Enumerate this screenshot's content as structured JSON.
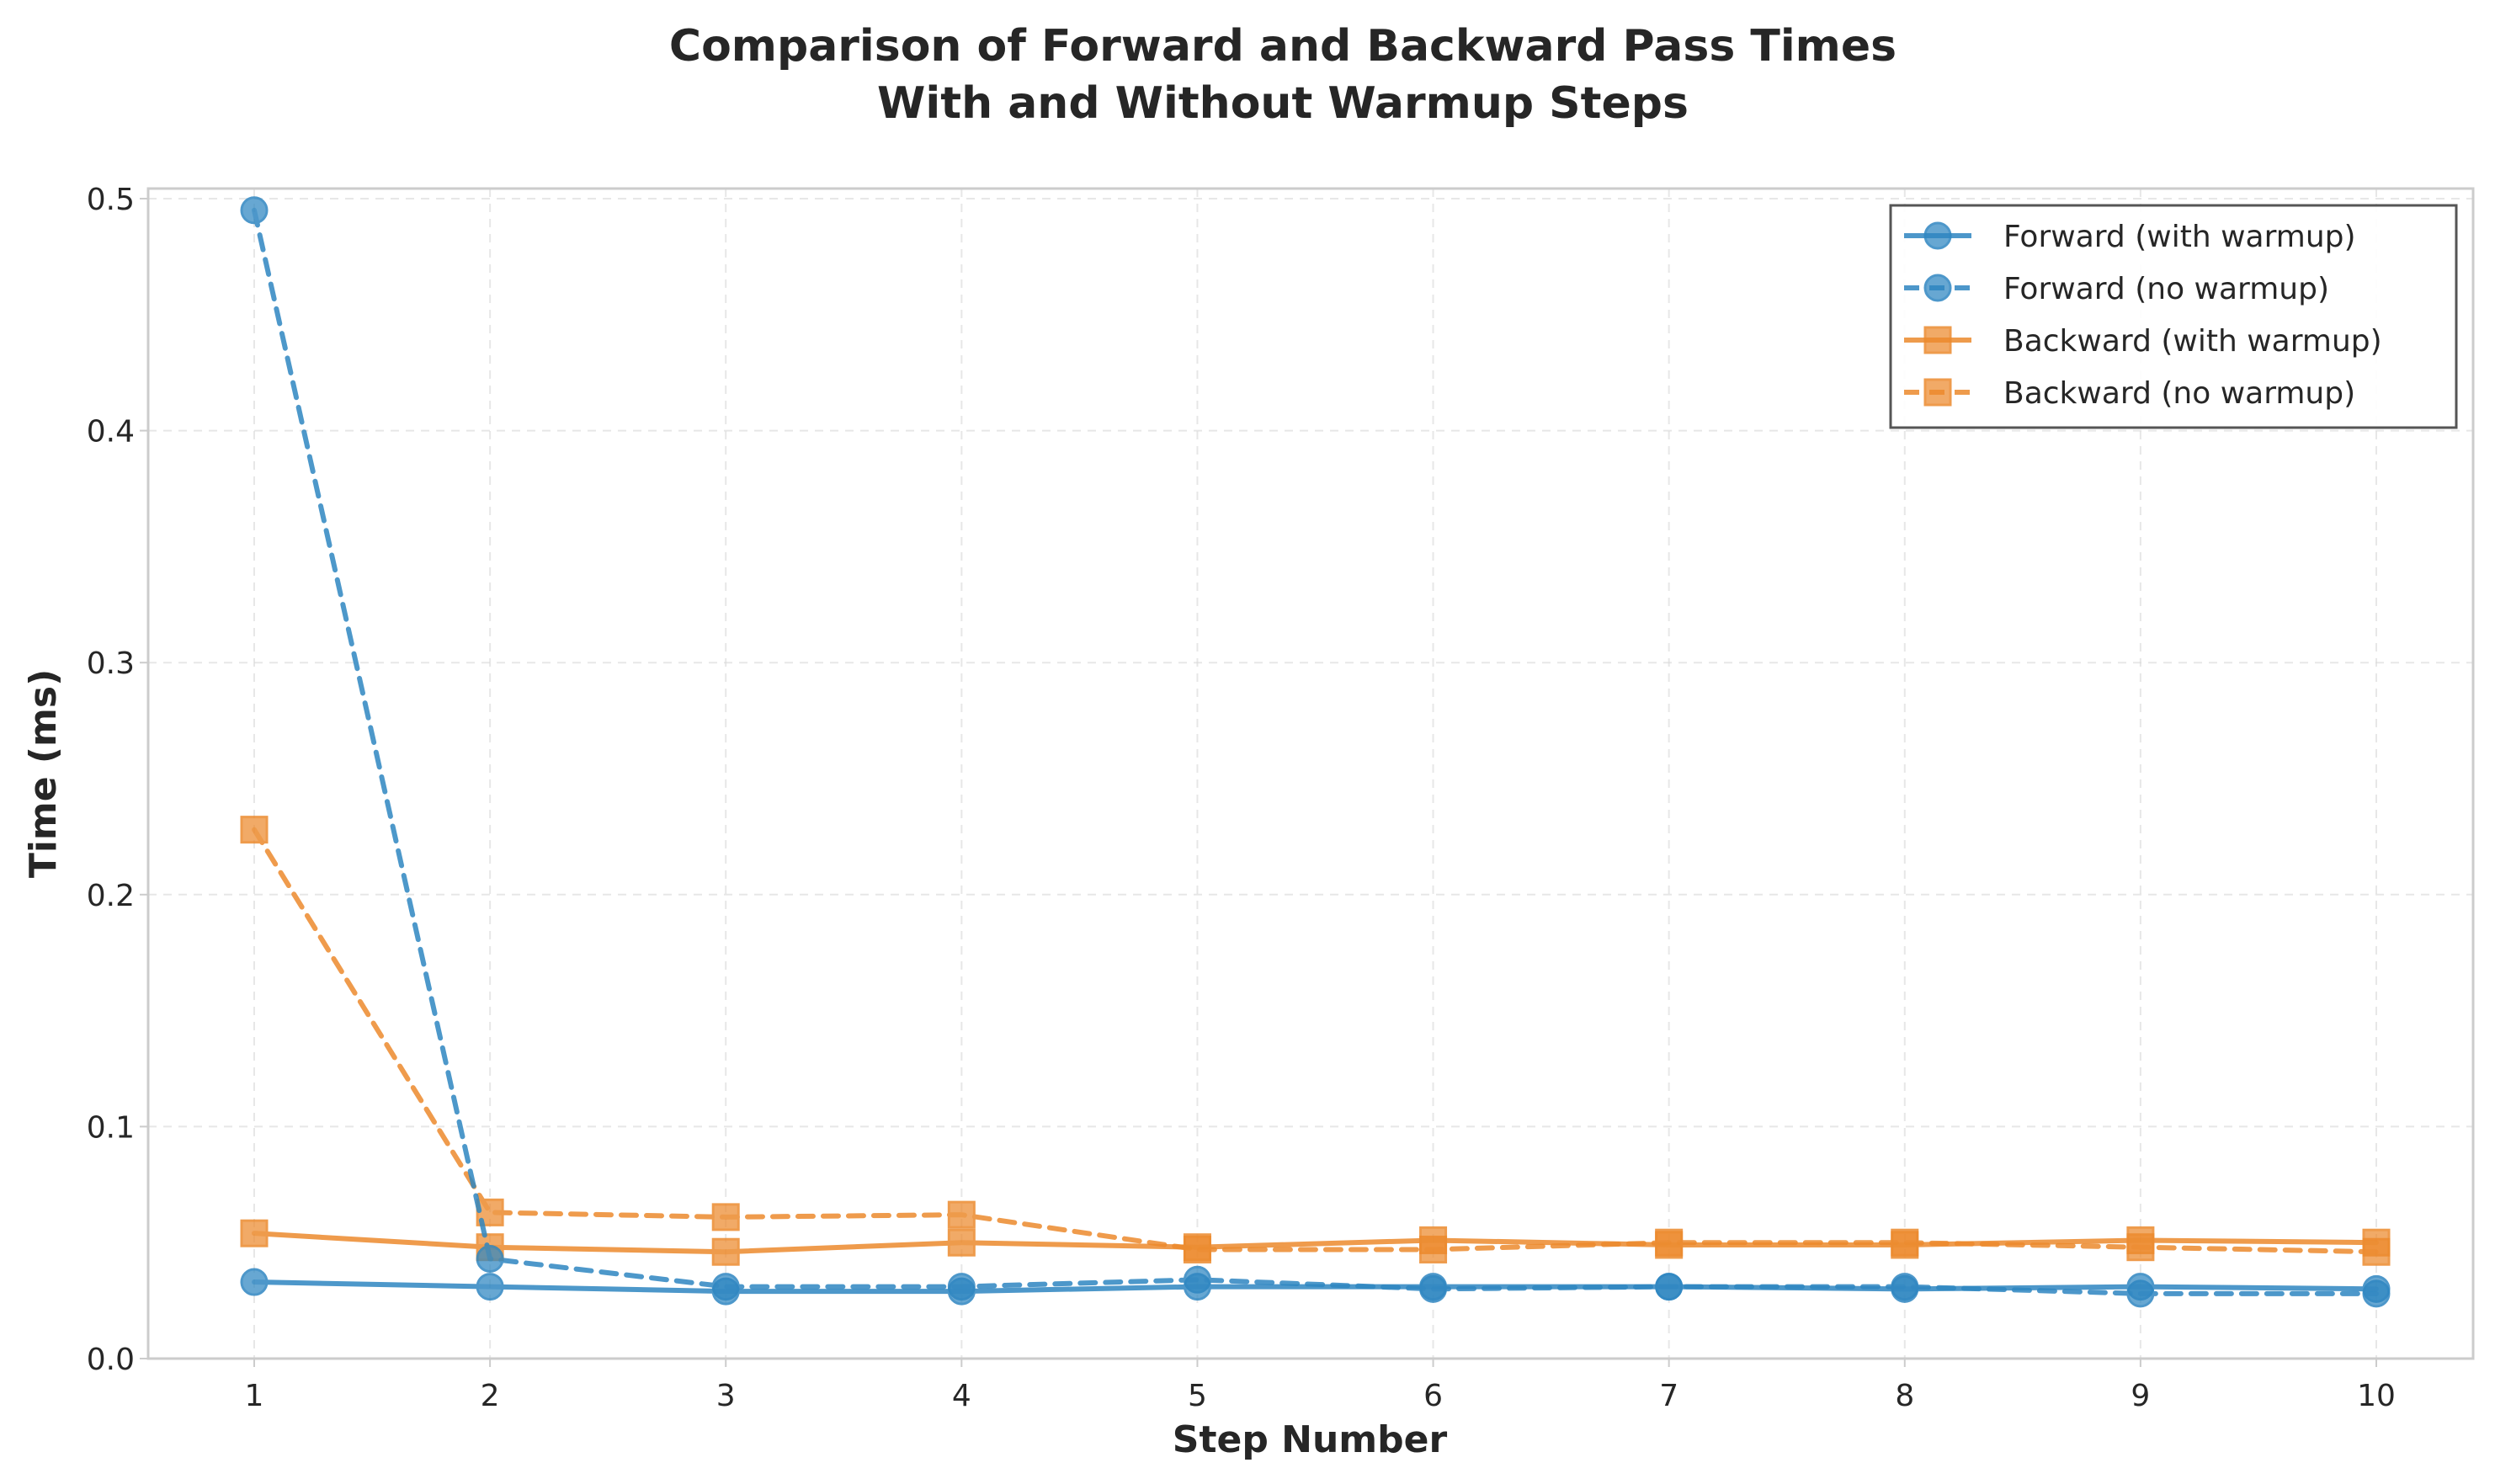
{
  "chart_data": {
    "type": "line",
    "title_lines": [
      "Comparison of Forward and Backward Pass Times",
      "With and Without Warmup Steps"
    ],
    "xlabel": "Step Number",
    "ylabel": "Time (ms)",
    "x": [
      1,
      2,
      3,
      4,
      5,
      6,
      7,
      8,
      9,
      10
    ],
    "xticks": [
      "1",
      "2",
      "3",
      "4",
      "5",
      "6",
      "7",
      "8",
      "9",
      "10"
    ],
    "yticks": [
      "0.0",
      "0.1",
      "0.2",
      "0.3",
      "0.4",
      "0.5"
    ],
    "ylim": [
      0,
      0.5
    ],
    "grid": true,
    "legend_position": "top-right",
    "series": [
      {
        "name": "Forward (with warmup)",
        "color": "#2e86c1",
        "dashed": false,
        "marker": "circle",
        "values": [
          0.033,
          0.031,
          0.029,
          0.029,
          0.031,
          0.031,
          0.031,
          0.03,
          0.031,
          0.03
        ]
      },
      {
        "name": "Forward (no warmup)",
        "color": "#2e86c1",
        "dashed": true,
        "marker": "circle",
        "values": [
          0.495,
          0.043,
          0.031,
          0.031,
          0.034,
          0.03,
          0.031,
          0.031,
          0.028,
          0.028
        ]
      },
      {
        "name": "Backward (with warmup)",
        "color": "#ec8a2d",
        "dashed": false,
        "marker": "square",
        "values": [
          0.054,
          0.048,
          0.046,
          0.05,
          0.048,
          0.051,
          0.049,
          0.049,
          0.051,
          0.05
        ]
      },
      {
        "name": "Backward (no warmup)",
        "color": "#ec8a2d",
        "dashed": true,
        "marker": "square",
        "values": [
          0.228,
          0.063,
          0.061,
          0.062,
          0.047,
          0.047,
          0.05,
          0.05,
          0.048,
          0.046
        ]
      }
    ]
  }
}
